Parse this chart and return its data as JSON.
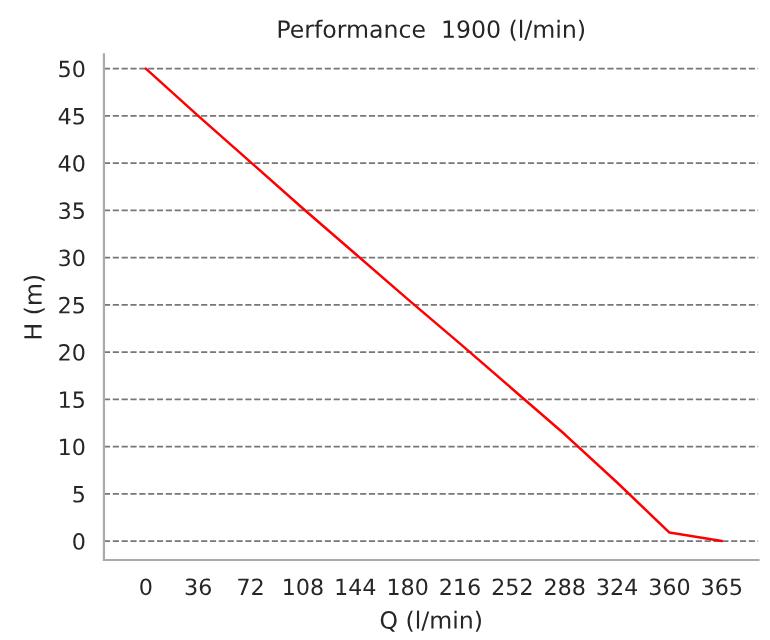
{
  "chart_data": {
    "type": "line",
    "title": "Performance  1900 (l/min)",
    "xlabel": "Q (l/min)",
    "ylabel": "H (m)",
    "categories": [
      "0",
      "36",
      "72",
      "108",
      "144",
      "180",
      "216",
      "252",
      "288",
      "324",
      "360",
      "365"
    ],
    "series": [
      {
        "color": "#ff0000",
        "values": [
          50,
          45.0,
          40.1,
          35.2,
          30.4,
          25.6,
          20.9,
          16.1,
          11.3,
          6.2,
          0.9,
          0
        ]
      }
    ],
    "ylim": [
      -2,
      51.5
    ],
    "yticks": [
      0,
      5,
      10,
      15,
      20,
      25,
      30,
      35,
      40,
      45,
      50
    ],
    "grid": "y",
    "marker": "none",
    "legend": false
  }
}
